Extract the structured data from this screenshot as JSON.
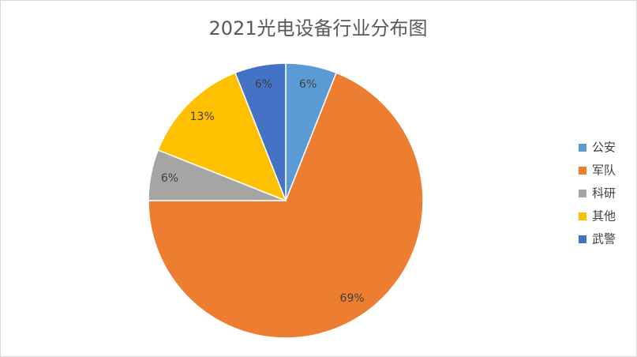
{
  "chart_data": {
    "type": "pie",
    "title": "2021光电设备行业分布图",
    "categories": [
      "公安",
      "军队",
      "科研",
      "其他",
      "武警"
    ],
    "values": [
      6,
      69,
      6,
      13,
      6
    ],
    "value_labels": [
      "6%",
      "69%",
      "6%",
      "13%",
      "6%"
    ],
    "colors": [
      "#5b9bd5",
      "#ed7d31",
      "#a5a5a5",
      "#ffc000",
      "#4472c4"
    ],
    "legend": "right"
  }
}
